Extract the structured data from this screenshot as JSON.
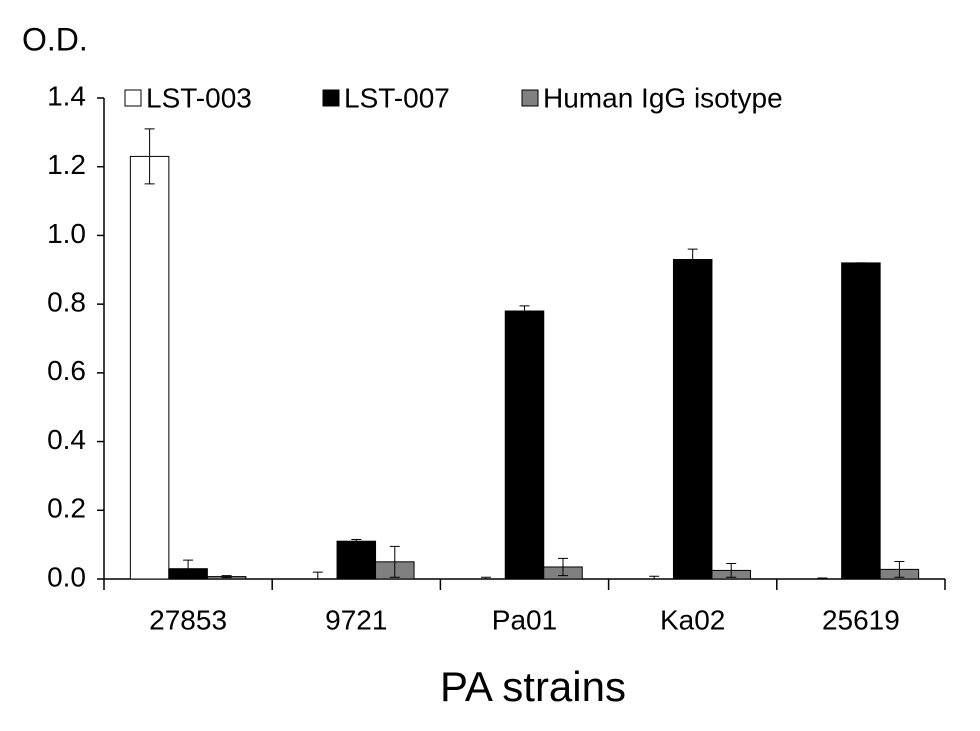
{
  "chart_data": {
    "type": "bar",
    "y_label": "O.D.",
    "x_label": "PA strains",
    "categories": [
      "27853",
      "9721",
      "Pa01",
      "Ka02",
      "25619"
    ],
    "series": [
      {
        "name": "LST-003",
        "color": "#ffffff",
        "values": [
          1.23,
          0,
          0,
          0,
          0
        ],
        "errors": [
          0.08,
          0.02,
          0.005,
          0.008,
          0.003
        ]
      },
      {
        "name": "LST-007",
        "color": "#000000",
        "values": [
          0.03,
          0.11,
          0.78,
          0.93,
          0.92
        ],
        "errors": [
          0.025,
          0.005,
          0.015,
          0.03,
          0
        ]
      },
      {
        "name": "Human IgG isotype",
        "color": "#808080",
        "values": [
          0.007,
          0.05,
          0.035,
          0.025,
          0.028
        ],
        "errors": [
          0.003,
          0.045,
          0.025,
          0.02,
          0.023
        ]
      }
    ],
    "ylim": [
      0,
      1.4
    ],
    "yticks": [
      {
        "value": 0,
        "label": "0.0"
      },
      0.2,
      0.4,
      0.6,
      0.8,
      {
        "value": 1,
        "label": "1.0"
      },
      1.2,
      1.4
    ],
    "legend": "top"
  }
}
